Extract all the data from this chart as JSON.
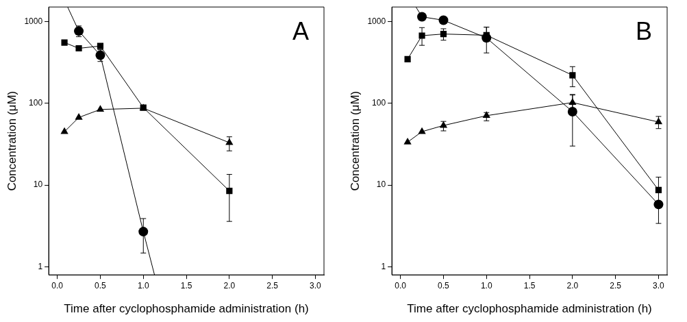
{
  "chart_data": [
    {
      "type": "line",
      "xlabel": "Time after cyclophosphamide administration (h)",
      "ylabel": "Concentration (μM)",
      "annotations": [
        "A"
      ],
      "log": "y",
      "xlim": [
        -0.1,
        3.1
      ],
      "ylim": [
        0.8,
        1500
      ],
      "xticks": [
        {
          "value": 0,
          "label": "0.0"
        },
        0.5,
        {
          "value": 1,
          "label": "1.0"
        },
        1.5,
        {
          "value": 2,
          "label": "2.0"
        },
        2.5,
        {
          "value": 3,
          "label": "3.0"
        }
      ],
      "yticks": [
        1,
        10,
        100,
        1000
      ],
      "series": [
        {
          "type": "line",
          "color": "#000000",
          "marker": "none",
          "x": [
            0.12,
            0.25,
            0.5,
            1.0,
            1.13
          ],
          "values": [
            1500,
            762,
            386,
            2.7,
            0.8
          ]
        },
        {
          "type": "scatter",
          "color": "#000000",
          "marker": "circle",
          "x": [
            0.25,
            0.5,
            1.0
          ],
          "values": [
            762,
            386,
            2.7
          ],
          "errors": [
            [
              650,
              880
            ],
            [
              324,
              450
            ],
            [
              1.48,
              3.9
            ]
          ]
        },
        {
          "type": "line",
          "color": "#000000",
          "marker": "square",
          "x": [
            0.083,
            0.25,
            0.5,
            1.0,
            2.0
          ],
          "values": [
            552,
            469,
            500,
            88.5,
            8.5
          ],
          "errors": [
            null,
            null,
            null,
            null,
            [
              3.6,
              13.5
            ]
          ]
        },
        {
          "type": "line",
          "color": "#000000",
          "marker": "triangle",
          "x": [
            0.083,
            0.25,
            0.5,
            1.0,
            2.0
          ],
          "values": [
            44.9,
            67,
            84,
            87,
            33
          ],
          "errors": [
            null,
            null,
            null,
            null,
            [
              26.2,
              38.9
            ]
          ]
        }
      ]
    },
    {
      "type": "line",
      "xlabel": "Time after cyclophosphamide administration (h)",
      "ylabel": "Concentration (μM)",
      "annotations": [
        "B"
      ],
      "log": "y",
      "xlim": [
        -0.1,
        3.1
      ],
      "ylim": [
        0.8,
        1500
      ],
      "xticks": [
        {
          "value": 0,
          "label": "0.0"
        },
        0.5,
        {
          "value": 1,
          "label": "1.0"
        },
        1.5,
        {
          "value": 2,
          "label": "2.0"
        },
        2.5,
        {
          "value": 3,
          "label": "3.0"
        }
      ],
      "yticks": [
        1,
        10,
        100,
        1000
      ],
      "series": [
        {
          "type": "line",
          "color": "#000000",
          "marker": "none",
          "x": [
            0.18,
            0.25,
            0.5,
            1.0,
            2.0,
            3.0
          ],
          "values": [
            1500,
            1138,
            1033,
            628,
            79,
            5.8
          ]
        },
        {
          "type": "scatter",
          "color": "#000000",
          "marker": "circle",
          "x": [
            0.25,
            0.5,
            1.0,
            2.0,
            3.0
          ],
          "values": [
            1138,
            1033,
            628,
            79,
            5.8
          ],
          "errors": [
            null,
            null,
            [
              412,
              851
            ],
            [
              30,
              126
            ],
            [
              3.4,
              8.2
            ]
          ]
        },
        {
          "type": "line",
          "color": "#000000",
          "marker": "square",
          "x": [
            0.083,
            0.25,
            0.5,
            1.0,
            2.0,
            3.0
          ],
          "values": [
            346,
            670,
            701,
            678,
            220,
            8.7
          ],
          "errors": [
            null,
            [
              510,
              840
            ],
            [
              589,
              813
            ],
            [
              589,
              851
            ],
            [
              159,
              280
            ],
            [
              8.7,
              12.5
            ]
          ]
        },
        {
          "type": "line",
          "color": "#000000",
          "marker": "triangle",
          "x": [
            0.083,
            0.25,
            0.5,
            1.0,
            2.0,
            3.0
          ],
          "values": [
            33.5,
            45,
            53.5,
            70.5,
            102,
            59
          ],
          "errors": [
            null,
            null,
            [
              46,
              60
            ],
            [
              61,
              77
            ],
            [
              86,
              128
            ],
            [
              49,
              69
            ]
          ]
        }
      ]
    }
  ]
}
